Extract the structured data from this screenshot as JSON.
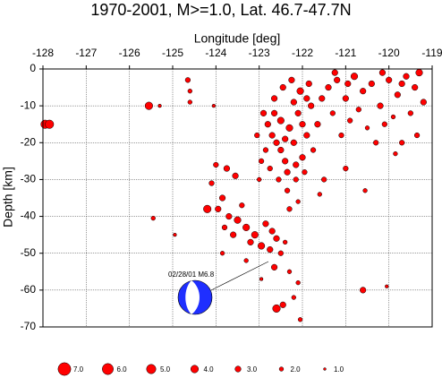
{
  "chart_data": {
    "type": "scatter",
    "title": "1970-2001, M>=1.0, Lat. 46.7-47.7N",
    "x_label": "Longitude [deg]",
    "y_label": "Depth [km]",
    "annotation": "02/28/01 M6.8",
    "color": "#ff0000",
    "xlim": [
      -128,
      -119
    ],
    "ylim": [
      -70,
      0
    ],
    "xticks": [
      -128,
      -127,
      -126,
      -125,
      -124,
      -123,
      -122,
      -121,
      -120,
      -119
    ],
    "yticks": [
      0,
      -10,
      -20,
      -30,
      -40,
      -50,
      -60,
      -70
    ],
    "grid": true,
    "x": [
      -127.95,
      -127.85,
      -125.55,
      -125.3,
      -125.45,
      -124.65,
      -124.6,
      -124.6,
      -124.95,
      -124.05,
      -124.0,
      -123.75,
      -123.55,
      -123.85,
      -124.2,
      -123.95,
      -123.7,
      -123.5,
      -123.3,
      -123.1,
      -123.2,
      -122.95,
      -122.75,
      -122.6,
      -123.6,
      -123.8,
      -124.1,
      -123.4,
      -122.85,
      -122.7,
      -122.5,
      -122.4,
      -122.65,
      -122.3,
      -122.1,
      -122.2,
      -122.6,
      -122.45,
      -122.05,
      -120.6,
      -120.05,
      -123.85,
      -123.3,
      -122.95,
      -122.9,
      -122.8,
      -122.7,
      -122.6,
      -122.5,
      -122.4,
      -122.3,
      -122.2,
      -122.1,
      -122.0,
      -121.9,
      -121.8,
      -122.85,
      -122.75,
      -122.55,
      -122.35,
      -122.15,
      -121.95,
      -121.75,
      -122.65,
      -122.45,
      -122.25,
      -122.05,
      -121.85,
      -122.95,
      -123.05,
      -123.0,
      -122.3,
      -122.1,
      -121.6,
      -121.5,
      -121.65,
      -122.5,
      -122.2,
      -122.0,
      -122.35,
      -122.65,
      -122.4,
      -122.15,
      -121.9,
      -121.4,
      -121.2,
      -121.0,
      -120.8,
      -120.6,
      -120.4,
      -120.2,
      -120.0,
      -119.8,
      -119.6,
      -119.4,
      -119.2,
      -121.3,
      -121.1,
      -120.9,
      -120.7,
      -120.5,
      -120.3,
      -120.1,
      -119.9,
      -119.7,
      -119.5,
      -119.35,
      -121.0,
      -120.55,
      -119.85,
      -121.25,
      -120.15,
      -119.3,
      -120.95,
      -121.55,
      -119.7
    ],
    "values": [
      -15,
      -15,
      -10,
      -10,
      -40.5,
      -3,
      -6,
      -9,
      -45,
      -10,
      -26,
      -27,
      -29,
      -35,
      -38,
      -38,
      -40,
      -41,
      -43,
      -45,
      -47,
      -48,
      -49,
      -46,
      -45,
      -43,
      -31,
      -37,
      -42,
      -44,
      -50,
      -47,
      -53.8,
      -55,
      -58,
      -62,
      -65,
      -64,
      -68,
      -60,
      -59,
      -50,
      -52,
      -57,
      -12,
      -15,
      -18,
      -20,
      -22,
      -25,
      -16,
      -20,
      -12,
      -24,
      -18,
      -10,
      -22,
      -27,
      -30,
      -33,
      -30,
      -28,
      -22,
      -8,
      -5,
      -3,
      -6,
      -4,
      -25,
      -18,
      -30,
      -38,
      -36,
      -34,
      -30,
      -15,
      -14,
      -9,
      -15,
      -28,
      -12,
      -19,
      -26,
      -8,
      -5,
      -3,
      -8,
      -2,
      -6,
      -4,
      -10,
      -3,
      -7,
      -2,
      -5,
      -9,
      -12,
      -18,
      -14,
      -11,
      -16,
      -20,
      -15,
      -13,
      -20,
      -12,
      -18,
      -27,
      -33,
      -23,
      -1,
      -1,
      -1,
      -4,
      -8,
      -4
    ],
    "sizes": [
      4.5,
      4.5,
      4,
      1.5,
      2,
      2.5,
      2,
      2,
      1.5,
      1.5,
      2.5,
      3,
      3,
      3,
      4,
      3,
      3,
      3.5,
      3.5,
      3.5,
      3,
      3.5,
      3,
      3,
      3,
      2.5,
      2.5,
      2.5,
      3,
      3,
      2.5,
      2,
      3,
      2,
      2,
      2,
      4,
      3,
      2,
      3,
      1.5,
      2,
      2,
      1.5,
      3,
      3,
      3,
      3,
      3,
      3,
      3.5,
      3,
      3,
      3,
      3,
      3,
      2.5,
      2.5,
      2.5,
      2.5,
      2.5,
      2.5,
      2.5,
      3,
      3,
      3,
      3.5,
      3,
      2.5,
      2.5,
      2,
      2.5,
      2,
      2,
      2.5,
      3,
      3.5,
      3,
      3,
      3,
      3,
      3,
      3,
      3,
      3,
      3,
      3,
      3.5,
      3,
      3,
      3,
      3,
      3,
      3,
      3,
      3,
      2.5,
      2.5,
      2.5,
      2.5,
      2,
      2.5,
      2.5,
      2,
      2.5,
      2.5,
      2.5,
      2.5,
      2,
      2,
      3,
      3,
      3.5,
      3,
      3,
      3
    ],
    "size_legend": [
      {
        "value": 7,
        "label": "7.0"
      },
      {
        "value": 6,
        "label": "6.0"
      },
      {
        "value": 5,
        "label": "5.0"
      },
      {
        "value": 4,
        "label": "4.0"
      },
      {
        "value": 3,
        "label": "3.0"
      },
      {
        "value": 2,
        "label": "2.0"
      },
      {
        "value": 1,
        "label": "1.0"
      }
    ]
  }
}
